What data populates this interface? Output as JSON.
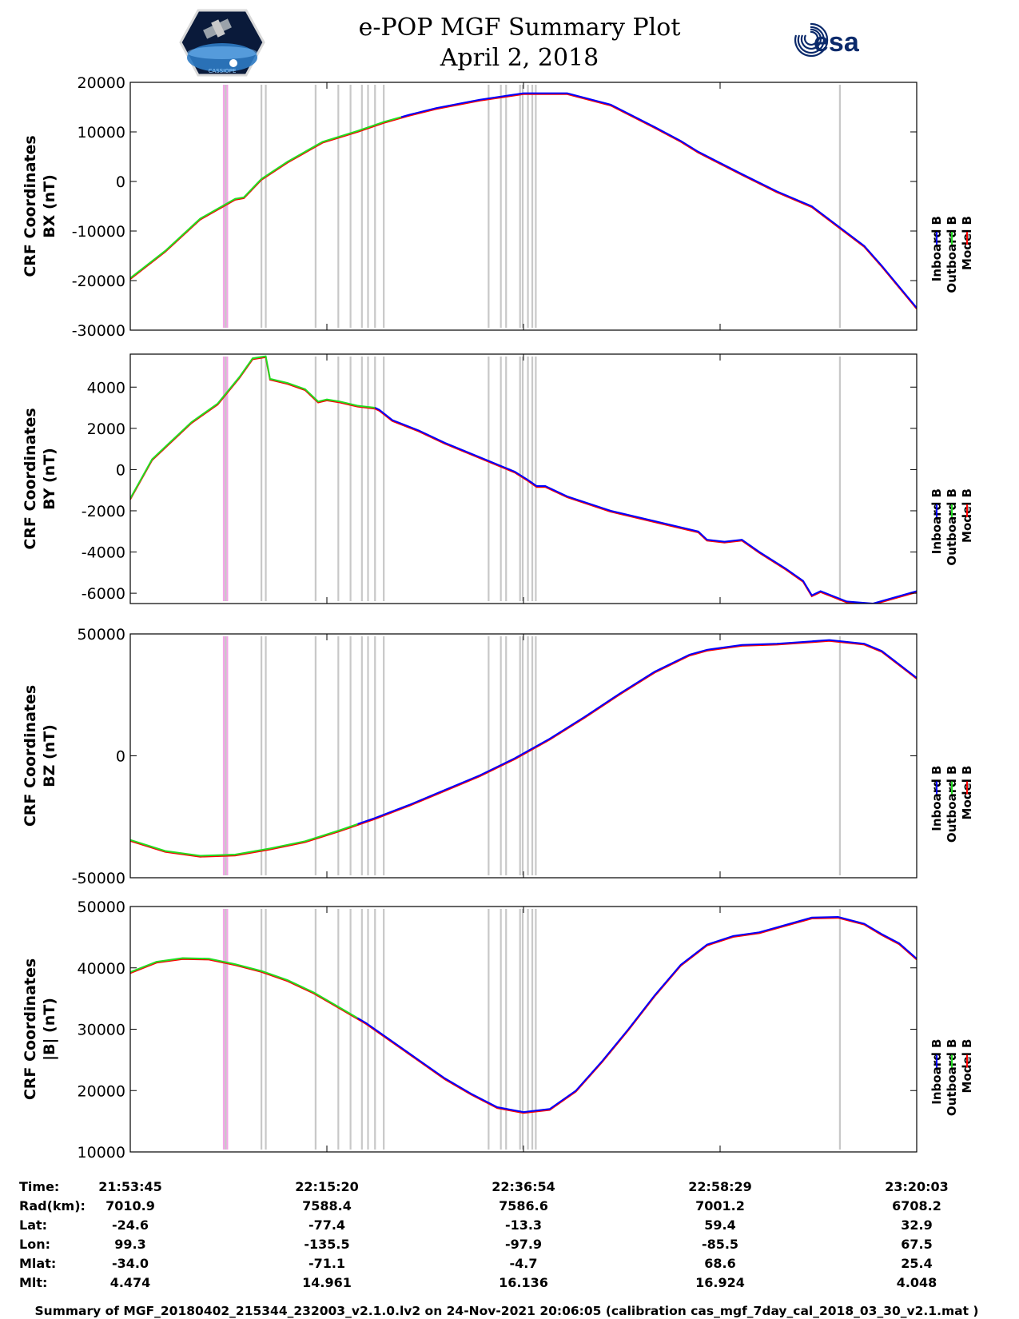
{
  "header": {
    "title_line1": "e-POP MGF Summary Plot",
    "title_line2": "April 2, 2018",
    "logo_left_caption": "CASSIOPE",
    "logo_right_text": "esa"
  },
  "colors": {
    "inboard": "#0000ff",
    "outboard": "#22dd22",
    "model": "#ff0000",
    "gray_band": "#c8c8c8",
    "pink_band": "#f4a6e8"
  },
  "chart_data": [
    {
      "type": "line",
      "ylabel_line1": "CRF Coordinates",
      "ylabel_line2": "BX (nT)",
      "ylim": [
        -30000,
        20000
      ],
      "yticks": [
        20000,
        10000,
        0,
        -10000,
        -20000,
        -30000
      ],
      "ytick_labels": [
        "20000",
        "10000",
        "0",
        "-10000",
        "-20000",
        "-30000"
      ],
      "legend": [
        "Inboard B",
        "Outboard B",
        "Model B"
      ],
      "x_minutes": [
        0,
        4,
        8,
        12,
        13,
        15,
        18,
        22,
        26,
        29,
        32,
        35,
        40,
        45,
        50,
        55,
        60,
        63,
        65,
        70,
        74,
        78,
        84,
        86,
        90
      ],
      "y": [
        -19500,
        -14000,
        -7500,
        -3500,
        -3200,
        500,
        4000,
        8000,
        10200,
        12000,
        13500,
        14800,
        16500,
        17800,
        17800,
        15500,
        11000,
        8200,
        6000,
        1500,
        -2000,
        -5000,
        -13000,
        -17000,
        -25500
      ],
      "green_until_minute": 31
    },
    {
      "type": "line",
      "ylabel_line1": "CRF Coordinates",
      "ylabel_line2": "BY (nT)",
      "ylim": [
        -6500,
        5600
      ],
      "yticks": [
        4000,
        2000,
        0,
        -2000,
        -4000,
        -6000
      ],
      "ytick_labels": [
        "4000",
        "2000",
        "0",
        "-2000",
        "-4000",
        "-6000"
      ],
      "legend": [
        "Inboard B",
        "Outboard B",
        "Model B"
      ],
      "x_minutes": [
        0,
        2.5,
        4,
        7,
        10,
        12.5,
        14,
        15.5,
        16,
        18,
        20,
        21.5,
        22.5,
        24,
        26,
        28,
        28.5,
        30,
        33,
        36,
        40,
        44,
        45.5,
        46.5,
        47.5,
        50,
        55,
        60,
        65,
        66,
        68,
        70,
        72,
        75,
        77,
        78,
        79,
        82,
        85,
        90
      ],
      "y": [
        -1400,
        500,
        1100,
        2300,
        3200,
        4500,
        5400,
        5500,
        4400,
        4200,
        3900,
        3300,
        3400,
        3300,
        3100,
        3000,
        2900,
        2400,
        1900,
        1300,
        600,
        -100,
        -500,
        -800,
        -800,
        -1300,
        -2000,
        -2500,
        -3000,
        -3400,
        -3500,
        -3400,
        -4000,
        -4800,
        -5400,
        -6100,
        -5900,
        -6400,
        -6500,
        -5900
      ],
      "green_until_minute": 28
    },
    {
      "type": "line",
      "ylabel_line1": "CRF Coordinates",
      "ylabel_line2": "BZ (nT)",
      "ylim": [
        -50000,
        50000
      ],
      "yticks": [
        50000,
        0,
        -50000
      ],
      "ytick_labels": [
        "50000",
        "0",
        "-50000"
      ],
      "legend": [
        "Inboard B",
        "Outboard B",
        "Model B"
      ],
      "x_minutes": [
        0,
        4,
        8,
        12,
        16,
        20,
        24,
        28,
        32,
        36,
        40,
        44,
        48,
        52,
        56,
        60,
        64,
        66,
        70,
        74,
        78,
        80,
        84,
        86,
        90
      ],
      "y": [
        -34500,
        -39000,
        -41000,
        -40500,
        -38000,
        -35000,
        -30500,
        -25500,
        -20000,
        -14000,
        -8000,
        -1000,
        7000,
        16000,
        25500,
        34500,
        41500,
        43500,
        45500,
        46000,
        47000,
        47500,
        46000,
        43000,
        32000
      ],
      "green_until_minute": 26
    },
    {
      "type": "line",
      "ylabel_line1": "CRF Coordinates",
      "ylabel_line2": "|B| (nT)",
      "ylim": [
        10000,
        50000
      ],
      "yticks": [
        50000,
        40000,
        30000,
        20000,
        10000
      ],
      "ytick_labels": [
        "50000",
        "40000",
        "30000",
        "20000",
        "10000"
      ],
      "legend": [
        "Inboard B",
        "Outboard B",
        "Model B"
      ],
      "x_minutes": [
        0,
        3,
        6,
        9,
        12,
        15,
        18,
        21,
        24,
        27,
        30,
        33,
        36,
        39,
        42,
        45,
        48,
        51,
        54,
        57,
        60,
        63,
        66,
        69,
        72,
        75,
        78,
        81,
        84,
        86,
        88,
        90
      ],
      "y": [
        39300,
        41000,
        41600,
        41500,
        40600,
        39500,
        38000,
        36000,
        33500,
        31000,
        28000,
        25000,
        22000,
        19500,
        17300,
        16500,
        17000,
        20000,
        24800,
        30000,
        35500,
        40500,
        43800,
        45200,
        45800,
        47000,
        48200,
        48300,
        47200,
        45500,
        44000,
        41500
      ],
      "green_until_minute": 26
    }
  ],
  "band_minutes": {
    "pink": [
      10.6,
      11.2
    ],
    "gray": [
      10.9,
      15.0,
      15.5,
      21.2,
      23.8,
      25.2,
      26.5,
      27.2,
      28.0,
      29.0,
      41.0,
      42.4,
      43.0,
      44.6,
      44.9,
      45.5,
      46.0,
      46.4,
      81.2
    ]
  },
  "x_axis": {
    "range_minutes": [
      0,
      90
    ],
    "tick_minutes": [
      0,
      22.5,
      45,
      67.5,
      90
    ]
  },
  "info_table": {
    "row_labels": [
      "Time:",
      "Rad(km):",
      "Lat:",
      "Lon:",
      "Mlat:",
      "Mlt:"
    ],
    "columns": [
      [
        "21:53:45",
        "7010.9",
        "-24.6",
        "99.3",
        "-34.0",
        "4.474"
      ],
      [
        "22:15:20",
        "7588.4",
        "-77.4",
        "-135.5",
        "-71.1",
        "14.961"
      ],
      [
        "22:36:54",
        "7586.6",
        "-13.3",
        "-97.9",
        "-4.7",
        "16.136"
      ],
      [
        "22:58:29",
        "7001.2",
        "59.4",
        "-85.5",
        "68.6",
        "16.924"
      ],
      [
        "23:20:03",
        "6708.2",
        "32.9",
        "67.5",
        "25.4",
        "4.048"
      ]
    ]
  },
  "footer": {
    "text": "Summary of MGF_20180402_215344_232003_v2.1.0.lv2 on 24-Nov-2021 20:06:05 (calibration cas_mgf_7day_cal_2018_03_30_v2.1.mat )"
  }
}
